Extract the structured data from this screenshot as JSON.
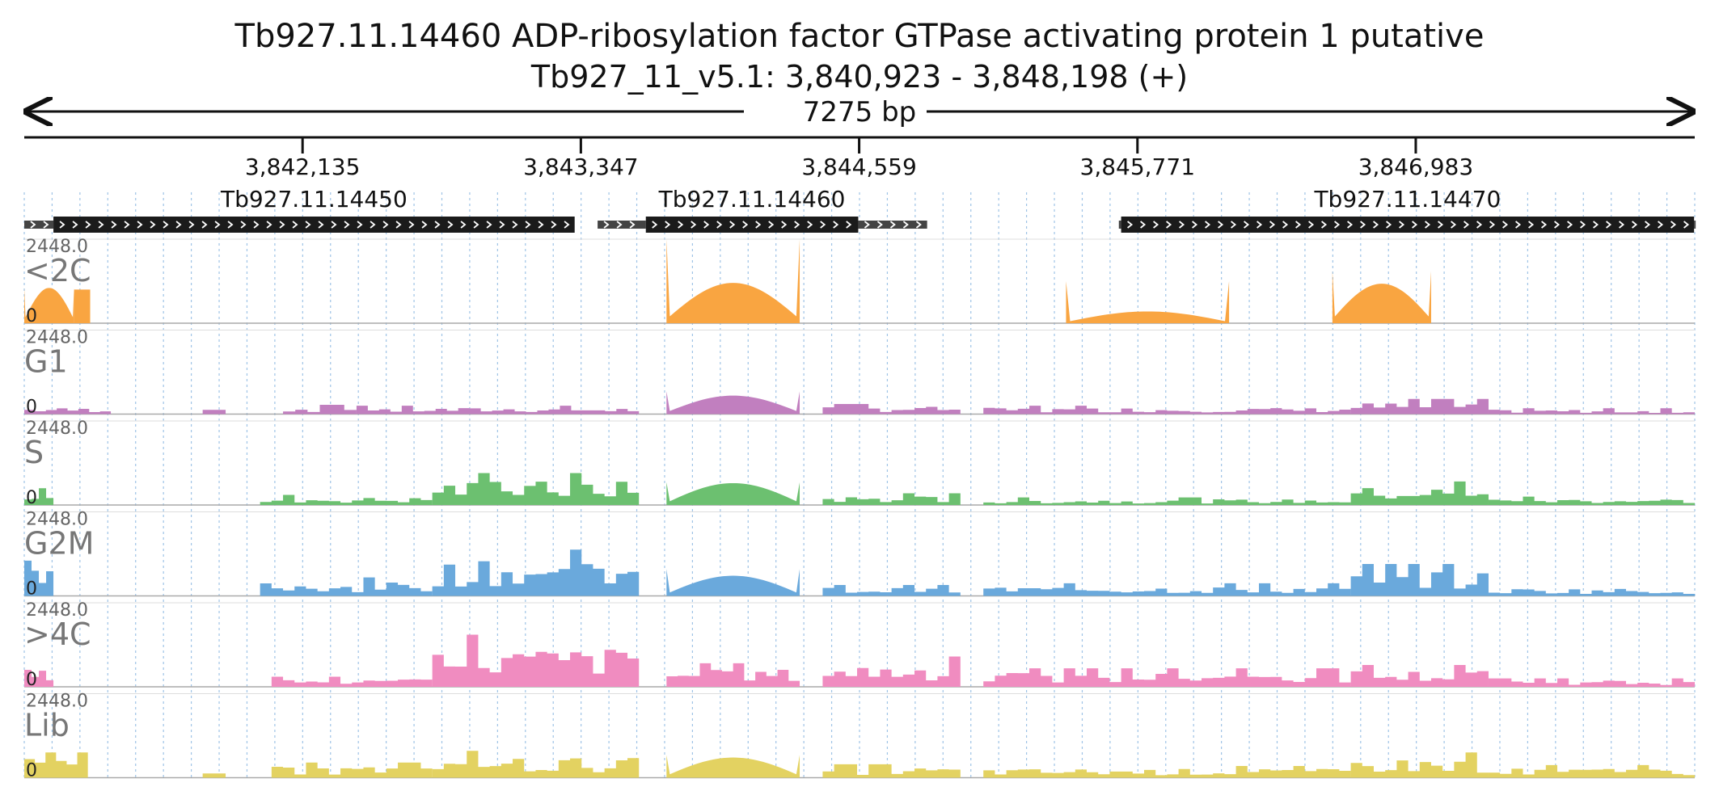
{
  "header": {
    "title_line1": "Tb927.11.14460  ADP-ribosylation factor GTPase activating protein 1  putative",
    "title_line2": "Tb927_11_v5.1: 3,840,923 - 3,848,198 (+)",
    "span_label": "7275 bp"
  },
  "chart_data": {
    "type": "area",
    "region": {
      "chromosome": "Tb927_11_v5.1",
      "start": 3840923,
      "end": 3848198,
      "strand": "+",
      "length_bp": 7275
    },
    "ticks": [
      {
        "pos": 3842135,
        "label": "3,842,135"
      },
      {
        "pos": 3843347,
        "label": "3,843,347"
      },
      {
        "pos": 3844559,
        "label": "3,844,559"
      },
      {
        "pos": 3845771,
        "label": "3,845,771"
      },
      {
        "pos": 3846983,
        "label": "3,846,983"
      }
    ],
    "genes": [
      {
        "name": "Tb927.11.14450",
        "utr5": [
          3840923,
          3841050
        ],
        "cds": [
          3841050,
          3843320
        ],
        "utr3": null
      },
      {
        "name": "Tb927.11.14460",
        "utr5": [
          3843420,
          3843630
        ],
        "cds": [
          3843630,
          3844555
        ],
        "utr3": [
          3844555,
          3844855
        ]
      },
      {
        "name": "Tb927.11.14470",
        "utr5": [
          3845690,
          3845700
        ],
        "cds": [
          3845700,
          3848195
        ],
        "utr3": [
          3848195,
          3848198
        ]
      }
    ],
    "tracks": [
      {
        "name": "<2C",
        "max": "2448.0",
        "min": "0",
        "color": "#f9a541",
        "blocks": [
          {
            "start": 3840923,
            "end": 3841140,
            "peak": 0.42,
            "shape": "arch"
          },
          {
            "start": 3841140,
            "end": 3841210,
            "peak": 0.4,
            "shape": "flat"
          },
          {
            "start": 3843720,
            "end": 3844300,
            "peak": 0.48,
            "shape": "arch",
            "edge": 1.0
          },
          {
            "start": 3845460,
            "end": 3846170,
            "peak": 0.14,
            "shape": "arch",
            "edge": 0.5
          },
          {
            "start": 3846620,
            "end": 3847050,
            "peak": 0.47,
            "shape": "arch",
            "edge": 0.62
          }
        ]
      },
      {
        "name": "G1",
        "max": "2448.0",
        "min": "0",
        "color": "#c17fbf",
        "blocks": [
          {
            "start": 3840923,
            "end": 3841300,
            "peak": 0.1,
            "shape": "noisy"
          },
          {
            "start": 3841700,
            "end": 3841800,
            "peak": 0.05,
            "shape": "flat"
          },
          {
            "start": 3842050,
            "end": 3842370,
            "peak": 0.11,
            "shape": "noisy"
          },
          {
            "start": 3842370,
            "end": 3843600,
            "peak": 0.1,
            "shape": "noisy"
          },
          {
            "start": 3843720,
            "end": 3844300,
            "peak": 0.22,
            "shape": "arch",
            "edge": 0.27
          },
          {
            "start": 3844400,
            "end": 3845000,
            "peak": 0.12,
            "shape": "noisy"
          },
          {
            "start": 3845100,
            "end": 3846700,
            "peak": 0.1,
            "shape": "noisy"
          },
          {
            "start": 3846700,
            "end": 3847300,
            "peak": 0.18,
            "shape": "noisy"
          },
          {
            "start": 3847300,
            "end": 3848198,
            "peak": 0.07,
            "shape": "noisy"
          }
        ]
      },
      {
        "name": "S",
        "max": "2448.0",
        "min": "0",
        "color": "#6cc070",
        "blocks": [
          {
            "start": 3840923,
            "end": 3841050,
            "peak": 0.2,
            "shape": "noisy"
          },
          {
            "start": 3841950,
            "end": 3842700,
            "peak": 0.12,
            "shape": "noisy"
          },
          {
            "start": 3842700,
            "end": 3843600,
            "peak": 0.38,
            "shape": "noisy"
          },
          {
            "start": 3843720,
            "end": 3844300,
            "peak": 0.26,
            "shape": "arch",
            "edge": 0.27
          },
          {
            "start": 3844400,
            "end": 3845000,
            "peak": 0.14,
            "shape": "noisy"
          },
          {
            "start": 3845100,
            "end": 3846700,
            "peak": 0.09,
            "shape": "noisy"
          },
          {
            "start": 3846700,
            "end": 3847300,
            "peak": 0.28,
            "shape": "noisy"
          },
          {
            "start": 3847300,
            "end": 3848198,
            "peak": 0.1,
            "shape": "noisy"
          }
        ]
      },
      {
        "name": "G2M",
        "max": "2448.0",
        "min": "0",
        "color": "#6aa9dc",
        "blocks": [
          {
            "start": 3840923,
            "end": 3841050,
            "peak": 0.42,
            "shape": "noisy"
          },
          {
            "start": 3841950,
            "end": 3842700,
            "peak": 0.22,
            "shape": "noisy"
          },
          {
            "start": 3842700,
            "end": 3843600,
            "peak": 0.55,
            "shape": "noisy"
          },
          {
            "start": 3843720,
            "end": 3844300,
            "peak": 0.24,
            "shape": "arch",
            "edge": 0.32
          },
          {
            "start": 3844400,
            "end": 3845000,
            "peak": 0.13,
            "shape": "noisy"
          },
          {
            "start": 3845100,
            "end": 3846700,
            "peak": 0.15,
            "shape": "noisy"
          },
          {
            "start": 3846700,
            "end": 3847300,
            "peak": 0.38,
            "shape": "noisy"
          },
          {
            "start": 3847300,
            "end": 3848198,
            "peak": 0.12,
            "shape": "noisy"
          }
        ]
      },
      {
        "name": ">4C",
        "max": "2448.0",
        "min": "0",
        "color": "#f08cc0",
        "blocks": [
          {
            "start": 3840923,
            "end": 3841050,
            "peak": 0.28,
            "shape": "noisy"
          },
          {
            "start": 3842000,
            "end": 3842700,
            "peak": 0.12,
            "shape": "noisy"
          },
          {
            "start": 3842700,
            "end": 3843600,
            "peak": 0.62,
            "shape": "noisy"
          },
          {
            "start": 3843720,
            "end": 3844300,
            "peak": 0.28,
            "shape": "noisy"
          },
          {
            "start": 3844400,
            "end": 3845000,
            "peak": 0.36,
            "shape": "noisy"
          },
          {
            "start": 3845100,
            "end": 3846700,
            "peak": 0.22,
            "shape": "noisy"
          },
          {
            "start": 3846700,
            "end": 3847300,
            "peak": 0.26,
            "shape": "noisy"
          },
          {
            "start": 3847300,
            "end": 3848198,
            "peak": 0.1,
            "shape": "noisy"
          }
        ]
      },
      {
        "name": "Lib",
        "max": "2448.0",
        "min": "0",
        "color": "#e3d261",
        "blocks": [
          {
            "start": 3840923,
            "end": 3841200,
            "peak": 0.3,
            "shape": "noisy"
          },
          {
            "start": 3841700,
            "end": 3841800,
            "peak": 0.05,
            "shape": "flat"
          },
          {
            "start": 3842000,
            "end": 3842700,
            "peak": 0.18,
            "shape": "noisy"
          },
          {
            "start": 3842700,
            "end": 3843600,
            "peak": 0.32,
            "shape": "noisy"
          },
          {
            "start": 3843720,
            "end": 3844300,
            "peak": 0.24,
            "shape": "arch",
            "edge": 0.27
          },
          {
            "start": 3844400,
            "end": 3845000,
            "peak": 0.16,
            "shape": "noisy"
          },
          {
            "start": 3845100,
            "end": 3846700,
            "peak": 0.14,
            "shape": "noisy"
          },
          {
            "start": 3846700,
            "end": 3847300,
            "peak": 0.3,
            "shape": "noisy"
          },
          {
            "start": 3847300,
            "end": 3848198,
            "peak": 0.15,
            "shape": "noisy"
          }
        ]
      }
    ]
  }
}
